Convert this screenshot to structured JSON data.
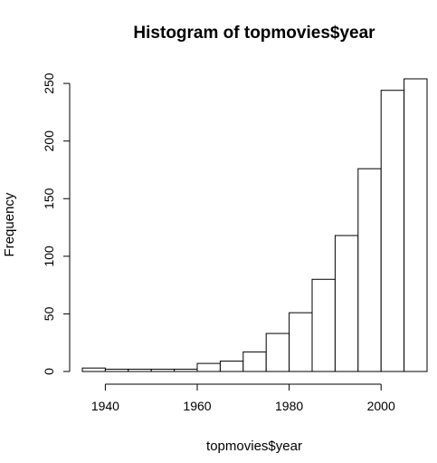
{
  "chart_data": {
    "type": "bar",
    "title": "Histogram of topmovies$year",
    "xlabel": "topmovies$year",
    "ylabel": "Frequency",
    "bins": [
      {
        "start": 1935,
        "end": 1940,
        "count": 3
      },
      {
        "start": 1940,
        "end": 1945,
        "count": 2
      },
      {
        "start": 1945,
        "end": 1950,
        "count": 2
      },
      {
        "start": 1950,
        "end": 1955,
        "count": 2
      },
      {
        "start": 1955,
        "end": 1960,
        "count": 2
      },
      {
        "start": 1960,
        "end": 1965,
        "count": 7
      },
      {
        "start": 1965,
        "end": 1970,
        "count": 9
      },
      {
        "start": 1970,
        "end": 1975,
        "count": 17
      },
      {
        "start": 1975,
        "end": 1980,
        "count": 33
      },
      {
        "start": 1980,
        "end": 1985,
        "count": 51
      },
      {
        "start": 1985,
        "end": 1990,
        "count": 80
      },
      {
        "start": 1990,
        "end": 1995,
        "count": 118
      },
      {
        "start": 1995,
        "end": 2000,
        "count": 176
      },
      {
        "start": 2000,
        "end": 2005,
        "count": 244
      },
      {
        "start": 2005,
        "end": 2010,
        "count": 254
      }
    ],
    "xticks": [
      1940,
      1960,
      1980,
      2000
    ],
    "yticks": [
      0,
      50,
      100,
      150,
      200,
      250
    ],
    "xlim": [
      1935,
      2010
    ],
    "ylim": [
      0,
      254
    ],
    "grid": false,
    "legend": "none"
  }
}
